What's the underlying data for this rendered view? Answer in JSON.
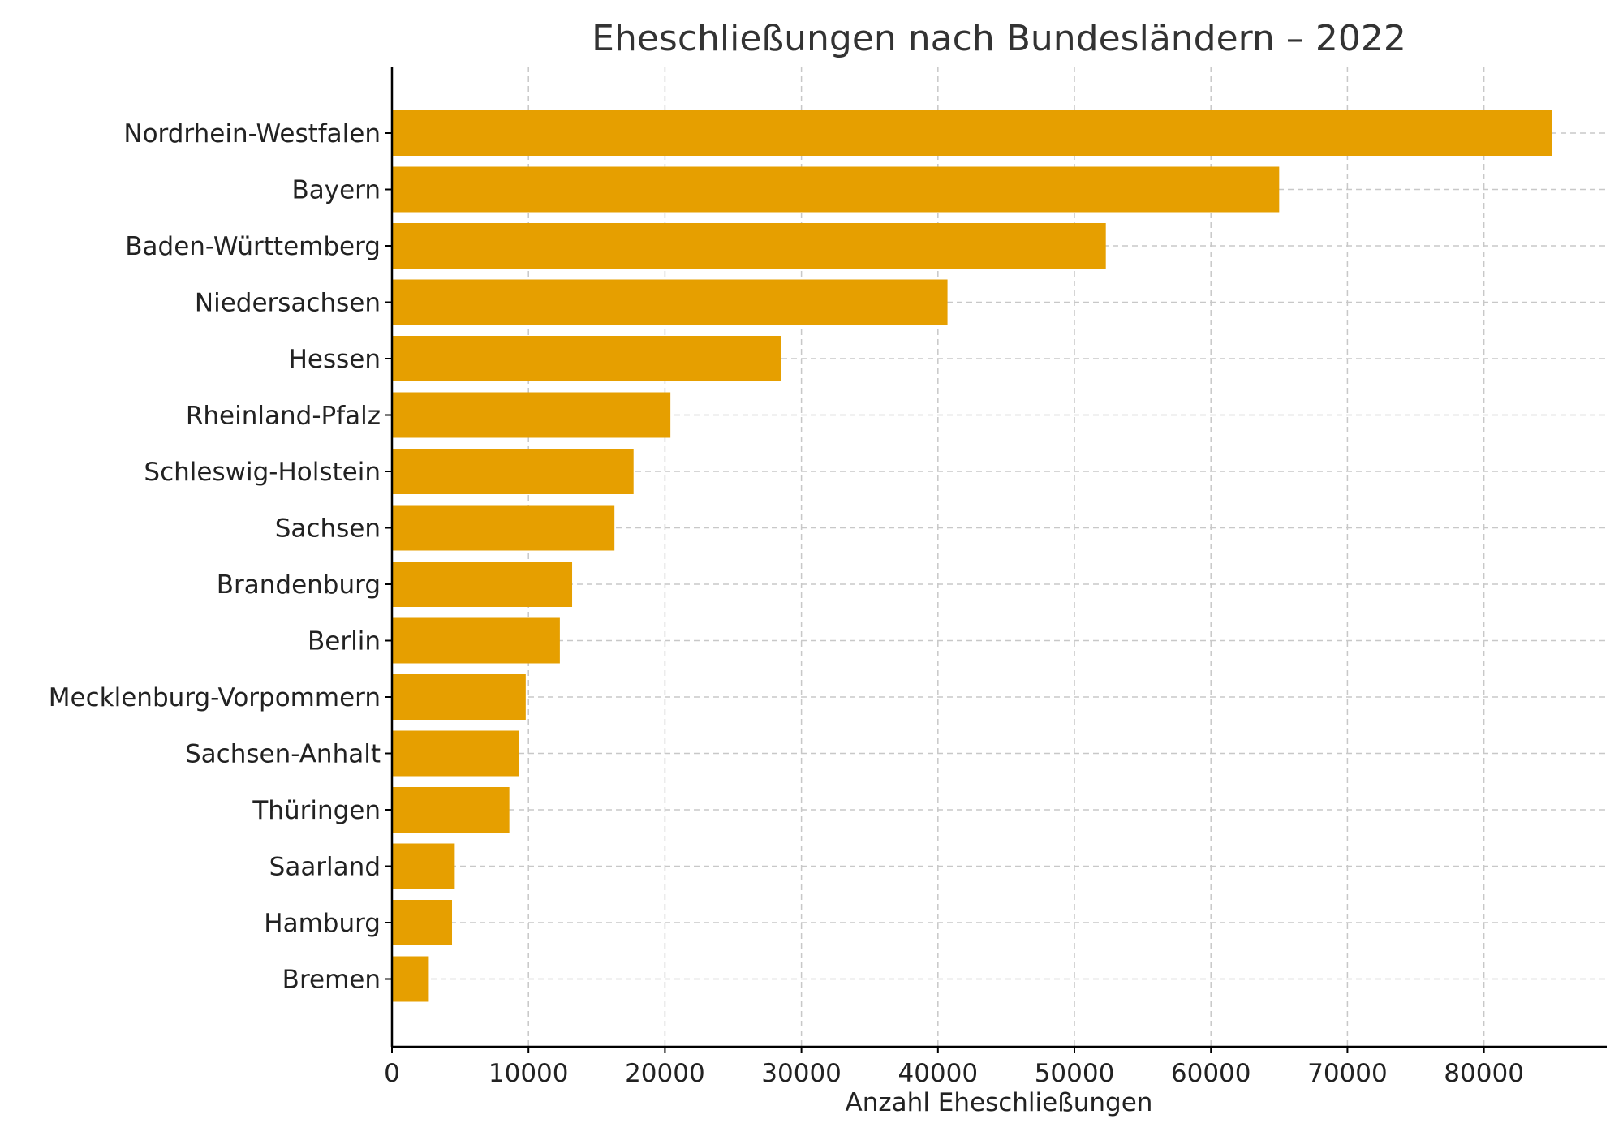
{
  "chart_data": {
    "type": "bar",
    "orientation": "horizontal",
    "title": "Eheschließungen nach Bundesländern – 2022",
    "xlabel": "Anzahl Eheschließungen",
    "ylabel": "",
    "xlim": [
      0,
      89000
    ],
    "xticks": [
      0,
      10000,
      20000,
      30000,
      40000,
      50000,
      60000,
      70000,
      80000
    ],
    "xtick_labels": [
      "0",
      "10000",
      "20000",
      "30000",
      "40000",
      "50000",
      "60000",
      "70000",
      "80000"
    ],
    "grid": true,
    "bar_color": "#E69F00",
    "categories": [
      "Nordrhein-Westfalen",
      "Bayern",
      "Baden-Württemberg",
      "Niedersachsen",
      "Hessen",
      "Rheinland-Pfalz",
      "Schleswig-Holstein",
      "Sachsen",
      "Brandenburg",
      "Berlin",
      "Mecklenburg-Vorpommern",
      "Sachsen-Anhalt",
      "Thüringen",
      "Saarland",
      "Hamburg",
      "Bremen"
    ],
    "values": [
      85000,
      65000,
      52300,
      40700,
      28500,
      20400,
      17700,
      16300,
      13200,
      12300,
      9800,
      9300,
      8600,
      4600,
      4400,
      2700
    ]
  }
}
